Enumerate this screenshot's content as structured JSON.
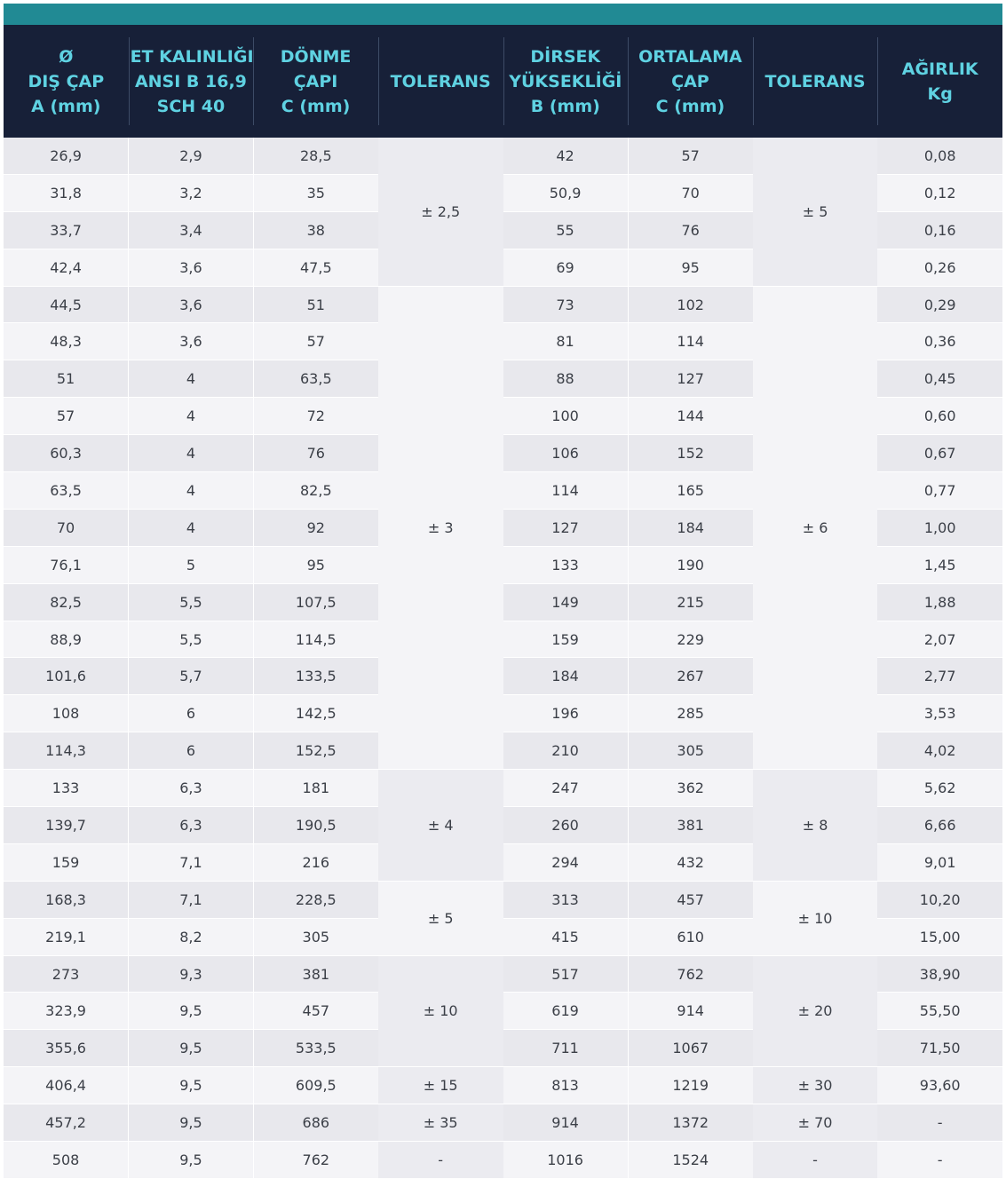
{
  "headers": [
    [
      "Ø",
      "DIŞ ÇAP",
      "A (mm)"
    ],
    [
      "ET KALINLIĞI",
      "ANSI B 16,9",
      "SCH 40"
    ],
    [
      "DÖNME",
      "ÇAPI",
      "C (mm)"
    ],
    [
      "TOLERANS"
    ],
    [
      "DİRSEK",
      "YÜKSEKLİĞİ",
      "B (mm)"
    ],
    [
      "ORTALAMA",
      "ÇAP",
      "C (mm)"
    ],
    [
      "TOLERANS"
    ],
    [
      "AĞIRLIK",
      "Kg"
    ]
  ],
  "rows": [
    [
      "26,9",
      "2,9",
      "28,5",
      "42",
      "57",
      "0,08"
    ],
    [
      "31,8",
      "3,2",
      "35",
      "50,9",
      "70",
      "0,12"
    ],
    [
      "33,7",
      "3,4",
      "38",
      "55",
      "76",
      "0,16"
    ],
    [
      "42,4",
      "3,6",
      "47,5",
      "69",
      "95",
      "0,26"
    ],
    [
      "44,5",
      "3,6",
      "51",
      "73",
      "102",
      "0,29"
    ],
    [
      "48,3",
      "3,6",
      "57",
      "81",
      "114",
      "0,36"
    ],
    [
      "51",
      "4",
      "63,5",
      "88",
      "127",
      "0,45"
    ],
    [
      "57",
      "4",
      "72",
      "100",
      "144",
      "0,60"
    ],
    [
      "60,3",
      "4",
      "76",
      "106",
      "152",
      "0,67"
    ],
    [
      "63,5",
      "4",
      "82,5",
      "114",
      "165",
      "0,77"
    ],
    [
      "70",
      "4",
      "92",
      "127",
      "184",
      "1,00"
    ],
    [
      "76,1",
      "5",
      "95",
      "133",
      "190",
      "1,45"
    ],
    [
      "82,5",
      "5,5",
      "107,5",
      "149",
      "215",
      "1,88"
    ],
    [
      "88,9",
      "5,5",
      "114,5",
      "159",
      "229",
      "2,07"
    ],
    [
      "101,6",
      "5,7",
      "133,5",
      "184",
      "267",
      "2,77"
    ],
    [
      "108",
      "6",
      "142,5",
      "196",
      "285",
      "3,53"
    ],
    [
      "114,3",
      "6",
      "152,5",
      "210",
      "305",
      "4,02"
    ],
    [
      "133",
      "6,3",
      "181",
      "247",
      "362",
      "5,62"
    ],
    [
      "139,7",
      "6,3",
      "190,5",
      "260",
      "381",
      "6,66"
    ],
    [
      "159",
      "7,1",
      "216",
      "294",
      "432",
      "9,01"
    ],
    [
      "168,3",
      "7,1",
      "228,5",
      "313",
      "457",
      "10,20"
    ],
    [
      "219,1",
      "8,2",
      "305",
      "415",
      "610",
      "15,00"
    ],
    [
      "273",
      "9,3",
      "381",
      "517",
      "762",
      "38,90"
    ],
    [
      "323,9",
      "9,5",
      "457",
      "619",
      "914",
      "55,50"
    ],
    [
      "355,6",
      "9,5",
      "533,5",
      "711",
      "1067",
      "71,50"
    ],
    [
      "406,4",
      "9,5",
      "609,5",
      "813",
      "1219",
      "93,60"
    ],
    [
      "457,2",
      "9,5",
      "686",
      "914",
      "1372",
      "-"
    ],
    [
      "508",
      "9,5",
      "762",
      "1016",
      "1524",
      "-"
    ]
  ],
  "tolerance_groups": [
    {
      "start": 0,
      "span": 4,
      "tol1": "± 2,5",
      "tol2": "± 5"
    },
    {
      "start": 4,
      "span": 13,
      "tol1": "± 3",
      "tol2": "± 6"
    },
    {
      "start": 17,
      "span": 3,
      "tol1": "± 4",
      "tol2": "± 8"
    },
    {
      "start": 20,
      "span": 2,
      "tol1": "± 5",
      "tol2": "± 10"
    },
    {
      "start": 22,
      "span": 3,
      "tol1": "± 10",
      "tol2": "± 20"
    },
    {
      "start": 25,
      "span": 1,
      "tol1": "± 15",
      "tol2": "± 30"
    },
    {
      "start": 26,
      "span": 1,
      "tol1": "± 35",
      "tol2": "± 70"
    },
    {
      "start": 27,
      "span": 1,
      "tol1": "-",
      "tol2": "-"
    }
  ]
}
